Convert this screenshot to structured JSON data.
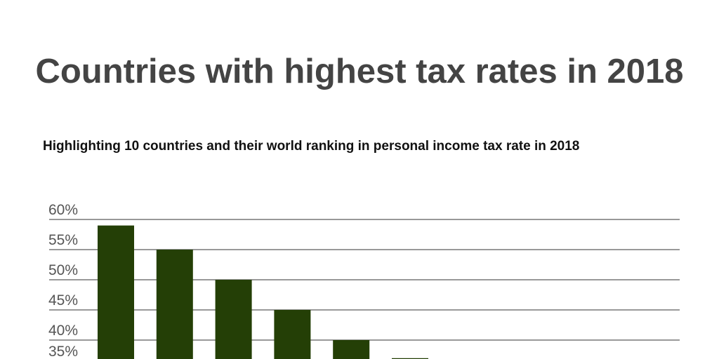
{
  "chart_data": {
    "type": "bar",
    "title": "Countries with highest tax rates in 2018",
    "subtitle": "Highlighting 10 countries and their world ranking in personal income tax rate in 2018",
    "xlabel": "",
    "ylabel": "",
    "y_ticks": [
      "60%",
      "55%",
      "50%",
      "45%",
      "40%",
      "35%"
    ],
    "ylim_visible": [
      35,
      60
    ],
    "grid": true,
    "bar_color": "#243f06",
    "grid_color": "#999999",
    "values": [
      59,
      55,
      50,
      45,
      40,
      37
    ]
  }
}
